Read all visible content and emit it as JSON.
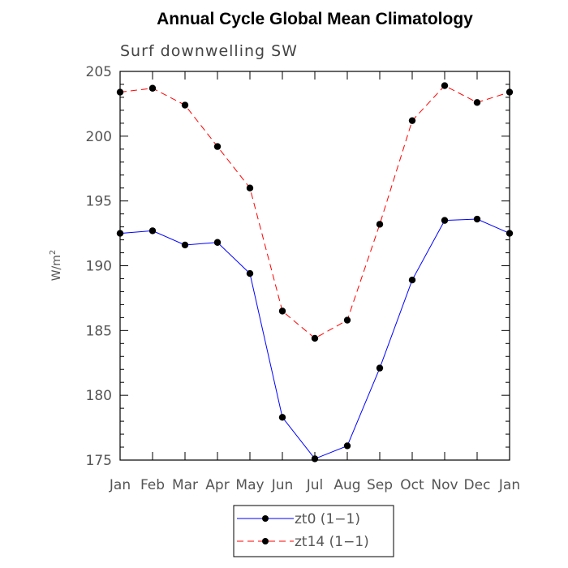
{
  "chart_data": {
    "type": "line",
    "title": "Annual Cycle Global Mean Climatology",
    "subtitle": "Surf downwelling SW",
    "xlabel": "",
    "ylabel": "W/m",
    "ylabel_superscript": "2",
    "categories": [
      "Jan",
      "Feb",
      "Mar",
      "Apr",
      "May",
      "Jun",
      "Jul",
      "Aug",
      "Sep",
      "Oct",
      "Nov",
      "Dec",
      "Jan"
    ],
    "ylim": [
      175,
      205
    ],
    "yticks": [
      175,
      180,
      185,
      190,
      195,
      200,
      205
    ],
    "series": [
      {
        "name": "zt0 (1-1)",
        "label": "zt0 (1−1)",
        "color": "#0000ff",
        "dash": "solid",
        "values": [
          192.5,
          192.7,
          191.6,
          191.8,
          189.4,
          178.3,
          175.1,
          176.1,
          182.1,
          188.9,
          193.5,
          193.6,
          192.5
        ]
      },
      {
        "name": "zt14 (1-1)",
        "label": "zt14 (1−1)",
        "color": "#ff0000",
        "dash": "dashed",
        "values": [
          203.4,
          203.7,
          202.4,
          199.2,
          196.0,
          186.5,
          184.4,
          185.8,
          193.2,
          201.2,
          203.9,
          202.6,
          203.4
        ]
      }
    ],
    "legend_position": "bottom-center"
  }
}
